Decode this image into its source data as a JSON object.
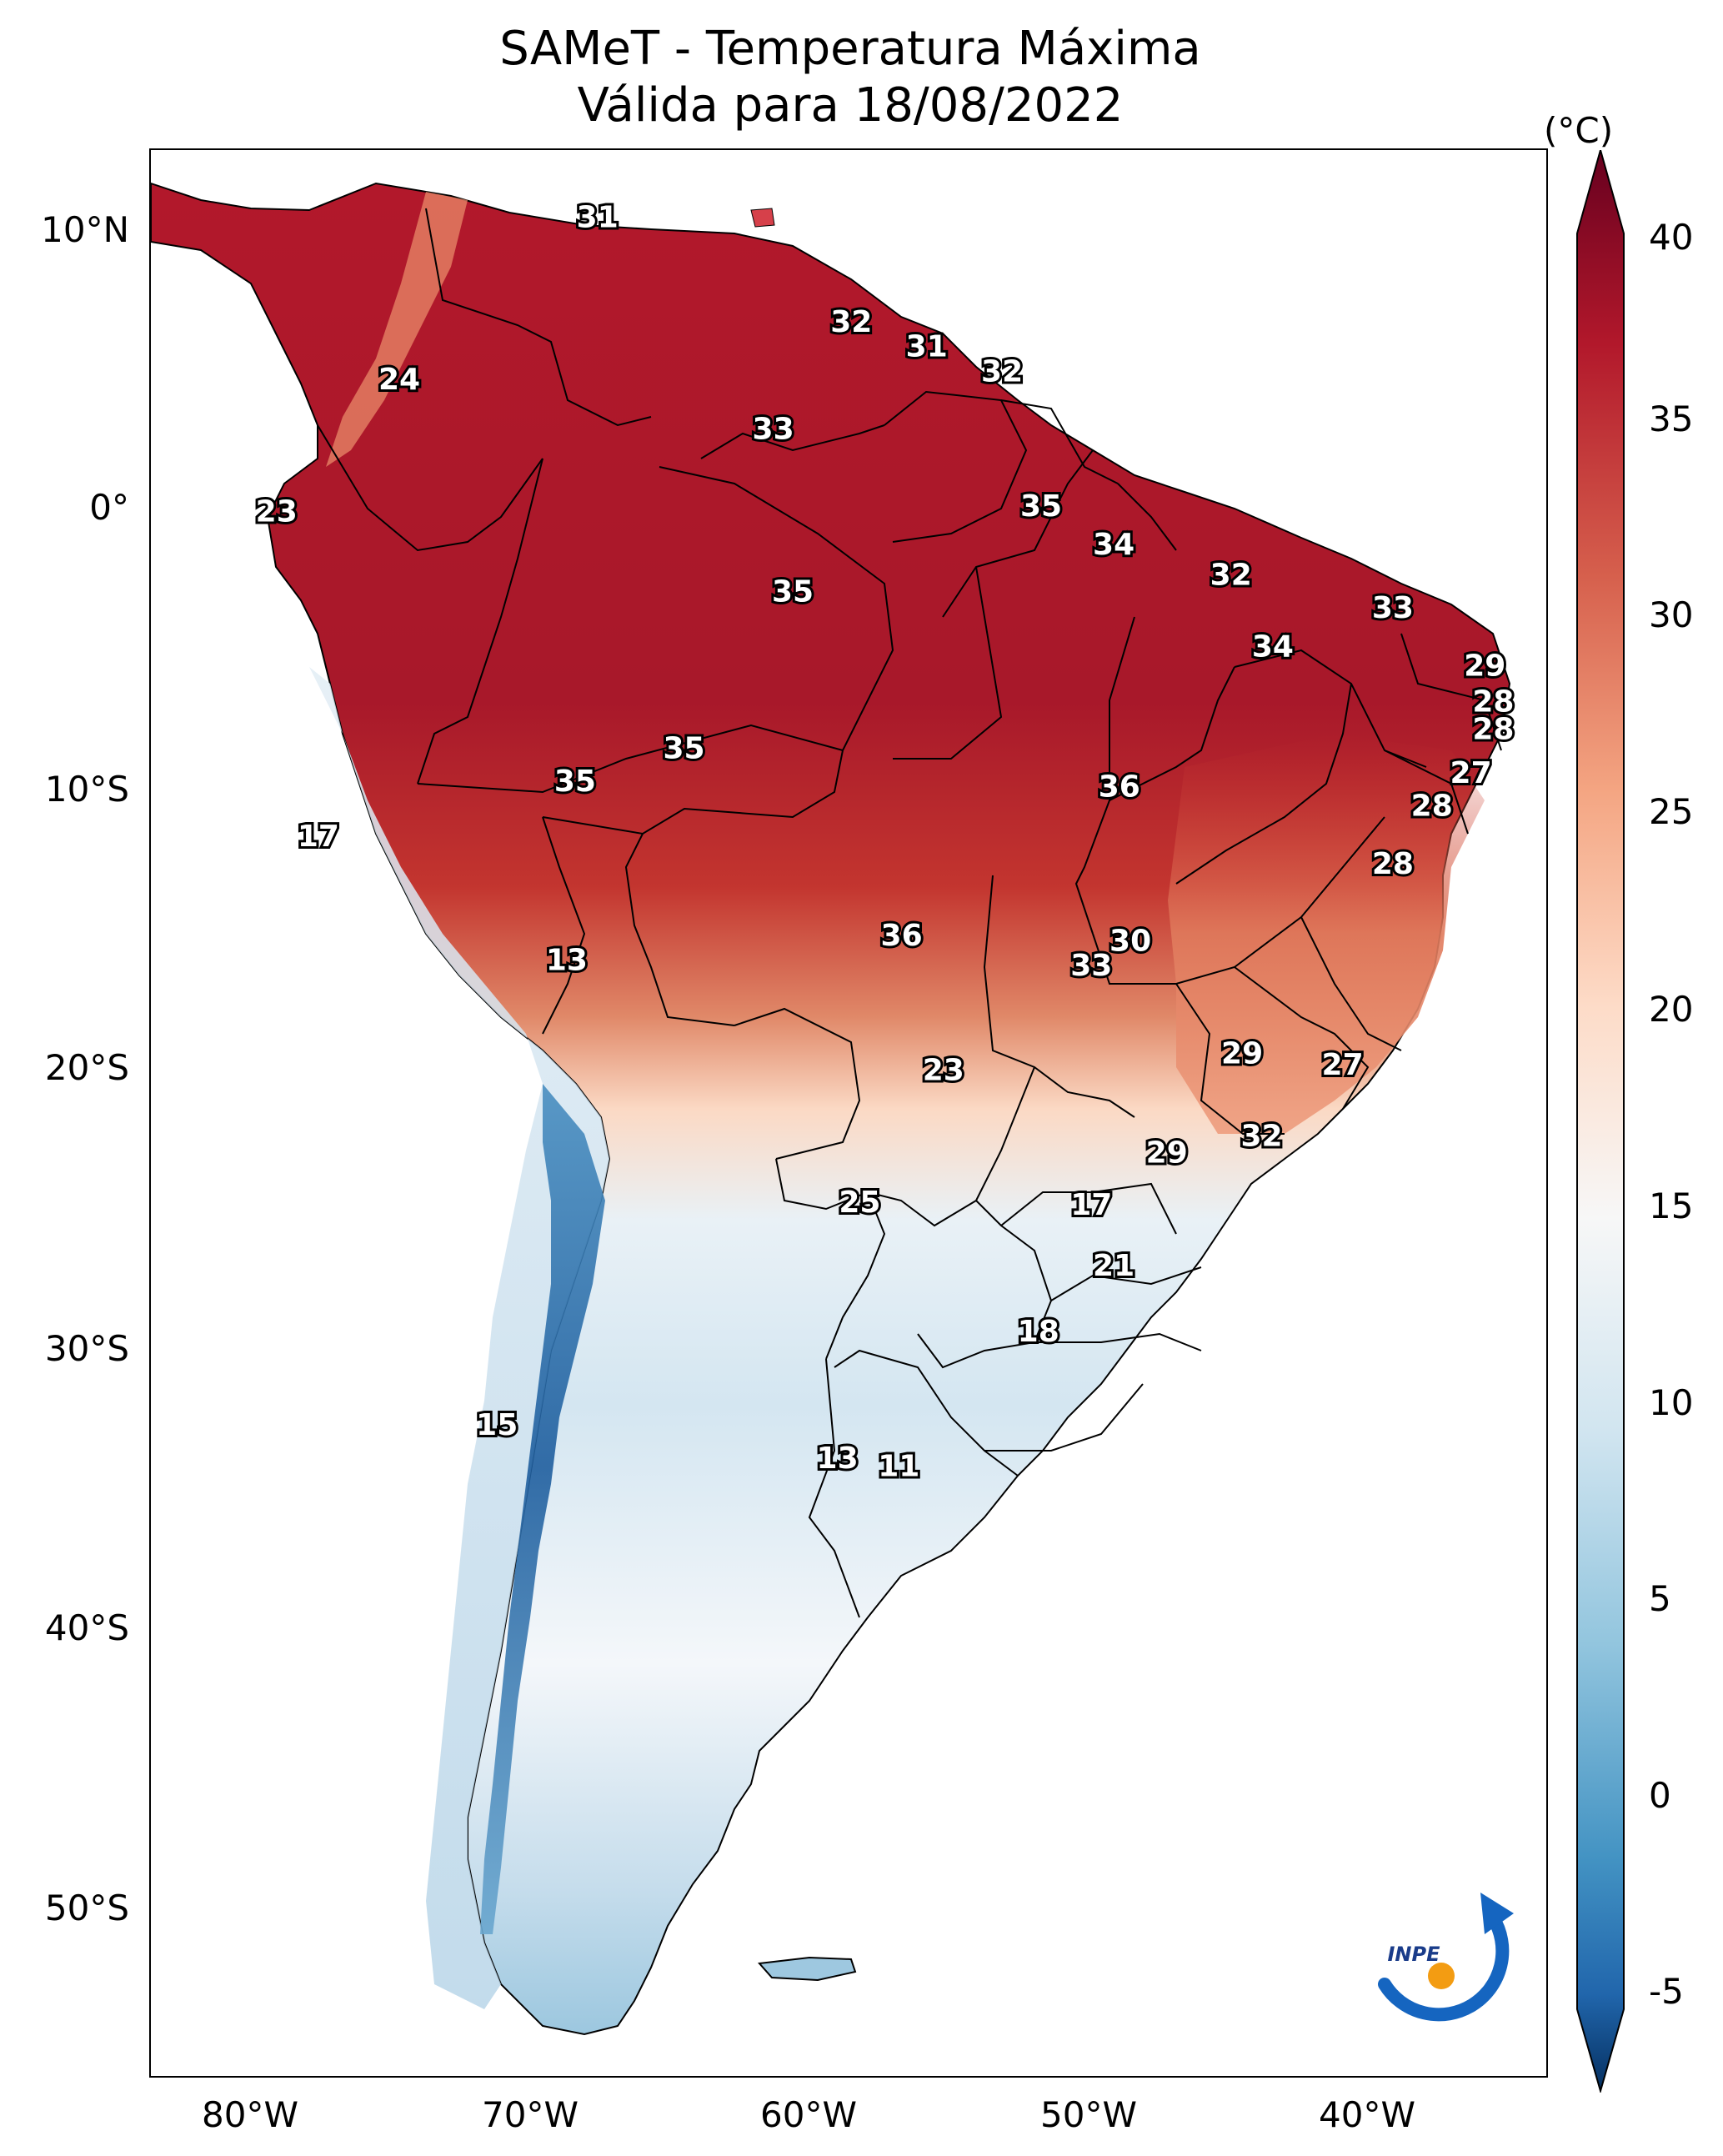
{
  "title": {
    "line1": "SAMeT - Temperatura Máxima",
    "line2": "Válida para 18/08/2022"
  },
  "colorbar": {
    "unit": "(°C)",
    "ticks": [
      "40",
      "35",
      "30",
      "25",
      "20",
      "15",
      "10",
      "5",
      "0",
      "-5"
    ],
    "colors": {
      "dark_red": "#67001f",
      "red": "#b2182b",
      "light_red": "#d6604d",
      "salmon": "#f4a582",
      "pink": "#fddbc7",
      "white": "#f7f7f7",
      "light_blue": "#d1e5f0",
      "sky_blue": "#92c5de",
      "blue": "#4393c3",
      "mid_blue": "#2166ac",
      "navy": "#053061"
    }
  },
  "axes": {
    "lat_labels": [
      "10°N",
      "0°",
      "10°S",
      "20°S",
      "30°S",
      "40°S",
      "50°S"
    ],
    "lon_labels": [
      "80°W",
      "70°W",
      "60°W",
      "50°W",
      "40°W"
    ]
  },
  "logo": {
    "text": "INPE"
  },
  "map_data": {
    "type": "heatmap",
    "variable": "Temperatura Máxima (°C)",
    "lon_range": [
      -83,
      -33
    ],
    "lat_range": [
      -57,
      13
    ],
    "value_range": [
      -5,
      40
    ],
    "city_labels": [
      {
        "value": "31",
        "lon": -67.0,
        "lat": 10.5
      },
      {
        "value": "32",
        "lon": -57.9,
        "lat": 6.7
      },
      {
        "value": "31",
        "lon": -55.2,
        "lat": 5.8
      },
      {
        "value": "32",
        "lon": -52.5,
        "lat": 4.9
      },
      {
        "value": "24",
        "lon": -74.1,
        "lat": 4.6
      },
      {
        "value": "33",
        "lon": -60.7,
        "lat": 2.8
      },
      {
        "value": "35",
        "lon": -51.1,
        "lat": 0.0
      },
      {
        "value": "23",
        "lon": -78.5,
        "lat": -0.2
      },
      {
        "value": "34",
        "lon": -48.5,
        "lat": -1.4
      },
      {
        "value": "32",
        "lon": -44.3,
        "lat": -2.5
      },
      {
        "value": "35",
        "lon": -60.0,
        "lat": -3.1
      },
      {
        "value": "33",
        "lon": -38.5,
        "lat": -3.7
      },
      {
        "value": "34",
        "lon": -42.8,
        "lat": -5.1
      },
      {
        "value": "29",
        "lon": -35.2,
        "lat": -5.8
      },
      {
        "value": "28",
        "lon": -34.9,
        "lat": -7.1
      },
      {
        "value": "28",
        "lon": -34.9,
        "lat": -8.1
      },
      {
        "value": "35",
        "lon": -63.9,
        "lat": -8.8
      },
      {
        "value": "27",
        "lon": -35.7,
        "lat": -9.7
      },
      {
        "value": "35",
        "lon": -67.8,
        "lat": -10.0
      },
      {
        "value": "36",
        "lon": -48.3,
        "lat": -10.2
      },
      {
        "value": "28",
        "lon": -37.1,
        "lat": -10.9
      },
      {
        "value": "17",
        "lon": -77.0,
        "lat": -12.0
      },
      {
        "value": "28",
        "lon": -38.5,
        "lat": -13.0
      },
      {
        "value": "30",
        "lon": -47.9,
        "lat": -15.8
      },
      {
        "value": "36",
        "lon": -56.1,
        "lat": -15.6
      },
      {
        "value": "13",
        "lon": -68.1,
        "lat": -16.5
      },
      {
        "value": "33",
        "lon": -49.3,
        "lat": -16.7
      },
      {
        "value": "29",
        "lon": -43.9,
        "lat": -19.9
      },
      {
        "value": "27",
        "lon": -40.3,
        "lat": -20.3
      },
      {
        "value": "23",
        "lon": -54.6,
        "lat": -20.5
      },
      {
        "value": "32",
        "lon": -43.2,
        "lat": -22.9
      },
      {
        "value": "29",
        "lon": -46.6,
        "lat": -23.5
      },
      {
        "value": "25",
        "lon": -57.6,
        "lat": -25.3
      },
      {
        "value": "17",
        "lon": -49.3,
        "lat": -25.4
      },
      {
        "value": "21",
        "lon": -48.5,
        "lat": -27.6
      },
      {
        "value": "18",
        "lon": -51.2,
        "lat": -30.0
      },
      {
        "value": "15",
        "lon": -70.6,
        "lat": -33.4
      },
      {
        "value": "13",
        "lon": -58.4,
        "lat": -34.6
      },
      {
        "value": "11",
        "lon": -56.2,
        "lat": -34.9
      }
    ]
  }
}
